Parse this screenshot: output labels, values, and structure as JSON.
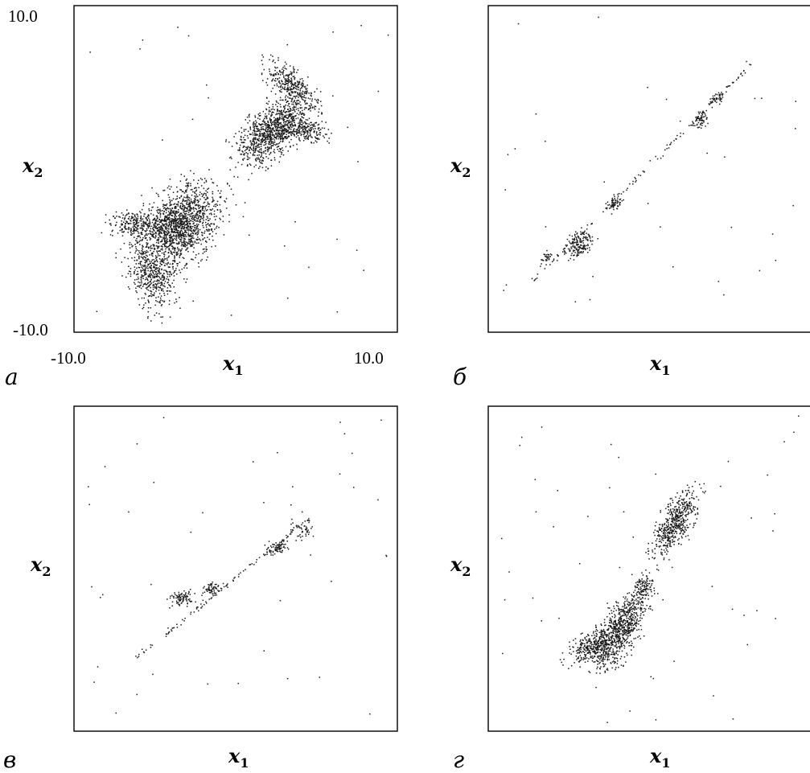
{
  "chart_data": [
    {
      "panel_label": "а",
      "type": "scatter",
      "xlabel": "x",
      "xlabel_sub": "1",
      "ylabel": "x",
      "ylabel_sub": "2",
      "xlim": [
        -10,
        10
      ],
      "ylim": [
        -10,
        10
      ],
      "x_tick_labels": [
        "-10.0",
        "10.0"
      ],
      "y_tick_labels": [
        "10.0",
        "-10.0"
      ],
      "description_series": [
        {
          "x": [
            -7,
            -5,
            -4,
            -3,
            -2,
            -1,
            0,
            1,
            2,
            3,
            4,
            5
          ],
          "y": [
            -9,
            -8,
            -6,
            -4,
            -3,
            -2,
            0,
            1,
            3,
            4,
            6,
            7
          ]
        }
      ],
      "generator": {
        "blobs": [
          {
            "cx": -3.5,
            "cy": -3.5,
            "rx": 2.6,
            "ry": 1.7,
            "angle": 45,
            "n": 1500
          },
          {
            "cx": -5.2,
            "cy": -6.5,
            "rx": 1.2,
            "ry": 2.0,
            "angle": 20,
            "n": 450
          },
          {
            "cx": -6.3,
            "cy": -3.4,
            "rx": 1.3,
            "ry": 0.7,
            "angle": 0,
            "n": 220
          },
          {
            "cx": 2.3,
            "cy": 2.3,
            "rx": 2.3,
            "ry": 1.2,
            "angle": 40,
            "n": 1000
          },
          {
            "cx": 3.5,
            "cy": 5.0,
            "rx": 0.8,
            "ry": 1.8,
            "angle": 45,
            "n": 350
          },
          {
            "cx": 4.5,
            "cy": 2.3,
            "rx": 1.0,
            "ry": 0.5,
            "angle": -10,
            "n": 160
          }
        ],
        "line": null,
        "scatter": 45
      }
    },
    {
      "panel_label": "б",
      "type": "scatter",
      "xlabel": "x",
      "xlabel_sub": "1",
      "ylabel": "x",
      "ylabel_sub": "2",
      "xlim": [
        -10,
        10
      ],
      "ylim": [
        -10,
        10
      ],
      "x_tick_labels": [],
      "y_tick_labels": [],
      "generator": {
        "blobs": [
          {
            "cx": -4.3,
            "cy": -4.6,
            "rx": 0.8,
            "ry": 0.6,
            "angle": 45,
            "n": 160
          },
          {
            "cx": -2.1,
            "cy": -2.1,
            "rx": 0.5,
            "ry": 0.35,
            "angle": 45,
            "n": 60
          },
          {
            "cx": 3.3,
            "cy": 3.0,
            "rx": 0.5,
            "ry": 0.35,
            "angle": 45,
            "n": 60
          },
          {
            "cx": 4.3,
            "cy": 4.3,
            "rx": 0.5,
            "ry": 0.3,
            "angle": 45,
            "n": 40
          },
          {
            "cx": -6.4,
            "cy": -5.5,
            "rx": 0.5,
            "ry": 0.25,
            "angle": 45,
            "n": 30
          }
        ],
        "line": {
          "x0": -7.5,
          "y0": -7.2,
          "x1": 6.5,
          "y1": 6.5,
          "n": 140
        },
        "scatter": 35
      }
    },
    {
      "panel_label": "в",
      "type": "scatter",
      "xlabel": "x",
      "xlabel_sub": "1",
      "ylabel": "x",
      "ylabel_sub": "2",
      "xlim": [
        -10,
        10
      ],
      "ylim": [
        -10,
        10
      ],
      "x_tick_labels": [],
      "y_tick_labels": [],
      "generator": {
        "blobs": [
          {
            "cx": -3.3,
            "cy": -1.8,
            "rx": 0.7,
            "ry": 0.4,
            "angle": 15,
            "n": 90
          },
          {
            "cx": -1.5,
            "cy": -1.2,
            "rx": 0.5,
            "ry": 0.35,
            "angle": 20,
            "n": 55
          },
          {
            "cx": 2.6,
            "cy": 1.3,
            "rx": 0.6,
            "ry": 0.35,
            "angle": 20,
            "n": 70
          },
          {
            "cx": 4.2,
            "cy": 2.5,
            "rx": 0.6,
            "ry": 0.6,
            "angle": 60,
            "n": 45
          }
        ],
        "line": {
          "x0": -6.2,
          "y0": -5.5,
          "x1": 4.7,
          "y1": 3.2,
          "n": 120
        },
        "scatter": 45
      }
    },
    {
      "panel_label": "г",
      "type": "scatter",
      "xlabel": "x",
      "xlabel_sub": "1",
      "ylabel": "x",
      "ylabel_sub": "2",
      "xlim": [
        -10,
        10
      ],
      "ylim": [
        -10,
        10
      ],
      "x_tick_labels": [],
      "y_tick_labels": [],
      "generator": {
        "blobs": [
          {
            "cx": -1.8,
            "cy": -3.8,
            "rx": 2.4,
            "ry": 1.0,
            "angle": 60,
            "n": 800
          },
          {
            "cx": -3.5,
            "cy": -4.8,
            "rx": 1.4,
            "ry": 0.7,
            "angle": 20,
            "n": 300
          },
          {
            "cx": 1.7,
            "cy": 2.8,
            "rx": 2.0,
            "ry": 0.8,
            "angle": 60,
            "n": 520
          },
          {
            "cx": -0.3,
            "cy": -1.1,
            "rx": 0.7,
            "ry": 0.5,
            "angle": 60,
            "n": 100
          }
        ],
        "line": null,
        "scatter": 55
      }
    }
  ]
}
